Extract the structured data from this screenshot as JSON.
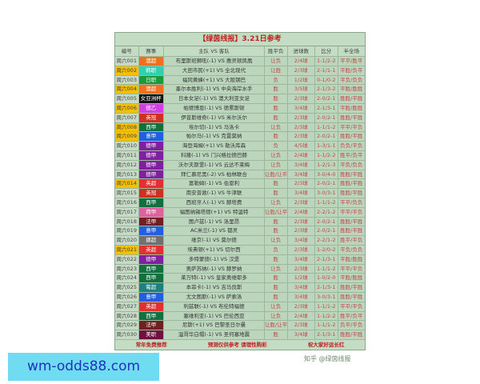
{
  "title": "【绿茵线报】3.21日参考",
  "headers": [
    "编号",
    "赛事",
    "主队 VS 客队",
    "胜平负",
    "进球数",
    "比分",
    "半全场"
  ],
  "rows": [
    [
      "周六001",
      "澳超",
      "#f07020",
      "布里斯班狮吼(-1) VS 惠灵顿凤凰",
      "让负",
      "2/4球",
      "1-1/2-2",
      "平平/胜平",
      false
    ],
    [
      "周六002",
      "韩职",
      "#30d0b0",
      "大田市民(+1) VS 全北现代",
      "让胜",
      "2/3球",
      "2-1/1-1",
      "平胜/负平",
      true
    ],
    [
      "周六003",
      "日职",
      "#1a9a3a",
      "福冈黄蜂(+1) VS 大阪钢巴",
      "负",
      "1/2球",
      "0-1/0-2",
      "平负/负负",
      false
    ],
    [
      "周六004",
      "澳超",
      "#f07020",
      "墨尔本胜利(-1) VS 中央海岸水手",
      "胜",
      "3/5球",
      "2-1/3-2",
      "平胜/胜胜",
      true
    ],
    [
      "周六005",
      "女亚洲杯",
      "#101010",
      "日本女足(-1) VS 澳大利亚女足",
      "胜",
      "2/3球",
      "2-0/2-1",
      "胜胜/平胜",
      false
    ],
    [
      "周六006",
      "德乙",
      "#d040e0",
      "帕德博恩(-1) VS 德累斯顿",
      "胜",
      "3/4球",
      "2-1/3-1",
      "平胜/胜胜",
      true
    ],
    [
      "周六007",
      "英冠",
      "#d03020",
      "伊普斯维奇(-1) VS 米尔沃尔",
      "胜",
      "2/3球",
      "2-0/2-1",
      "胜胜/平胜",
      false
    ],
    [
      "周六008",
      "西甲",
      "#107040",
      "埃尔切(-1) VS 马洛卡",
      "让负",
      "2/3球",
      "1-1/1-2",
      "平平/平负",
      true
    ],
    [
      "周六009",
      "意甲",
      "#2060e0",
      "帕尔马(-1) VS 克雷莫纳",
      "胜",
      "2/3球",
      "2-0/2-1",
      "胜胜/平胜",
      true
    ],
    [
      "周六010",
      "德甲",
      "#8020a0",
      "海登海姆(+1) VS 勒沃库森",
      "负",
      "4/5球",
      "1-3/1-1",
      "负负/平负",
      false
    ],
    [
      "周六011",
      "德甲",
      "#8020a0",
      "科隆(-1) VS 门兴格拉德巴赫",
      "让负",
      "2/4球",
      "1-1/2-2",
      "胜平/负平",
      false
    ],
    [
      "周六012",
      "德甲",
      "#8020a0",
      "沃尔夫斯堡(-1) VS 云达不莱梅",
      "让负",
      "3/4球",
      "1-2/1-3",
      "平负/负负",
      false
    ],
    [
      "周六013",
      "德甲",
      "#8020a0",
      "拜仁慕尼黑(-2) VS 柏林联合",
      "让胜/让平",
      "3/4球",
      "3-0/4-0",
      "胜胜/平胜",
      false
    ],
    [
      "周六014",
      "英超",
      "#e03030",
      "富勒姆(-1) VS 伯恩利",
      "胜",
      "2/3球",
      "2-0/2-1",
      "胜胜/平胜",
      true
    ],
    [
      "周六015",
      "英冠",
      "#d03020",
      "南安普敦(-1) VS 牛津联",
      "胜",
      "3/4球",
      "3-0/3-1",
      "胜胜/平胜",
      false
    ],
    [
      "周六016",
      "西甲",
      "#107040",
      "西班牙人(-1) VS 赫塔费",
      "让负",
      "2/3球",
      "1-1/1-2",
      "平平/负负",
      false
    ],
    [
      "周六017",
      "荷甲",
      "#e060a0",
      "福图纳锡塔德(+1) VS 特温特",
      "让胜/让平",
      "2/4球",
      "2-2/1-2",
      "平平/平负",
      false
    ],
    [
      "周六018",
      "法甲",
      "#702020",
      "图卢兹(-1) VS 洛里昂",
      "胜",
      "2/3球",
      "2-0/2-1",
      "胜胜/平胜",
      false
    ],
    [
      "周六019",
      "意甲",
      "#2060e0",
      "AC米兰(-1) VS 都灵",
      "胜",
      "2/3球",
      "2-0/2-1",
      "胜胜/平胜",
      false
    ],
    [
      "周六020",
      "挪超",
      "#707070",
      "维京(-1) VS 莫尔德",
      "让负",
      "3/4球",
      "2-2/1-2",
      "胜平/平负",
      false
    ],
    [
      "周六021",
      "英超",
      "#e03030",
      "埃弗顿(+1) VS 切尔西",
      "负",
      "2/3球",
      "1-2/0-2",
      "平负/负负",
      true
    ],
    [
      "周六022",
      "德甲",
      "#8020a0",
      "多特蒙德(-1) VS 汉堡",
      "胜",
      "3/4球",
      "2-1/3-1",
      "平胜/胜胜",
      false
    ],
    [
      "周六023",
      "西甲",
      "#107040",
      "奥萨苏纳(-1) VS 赫罗纳",
      "让负",
      "2/3球",
      "1-1/1-2",
      "平平/平负",
      false
    ],
    [
      "周六024",
      "西甲",
      "#107040",
      "莱万特(-1) VS 皇家奥维耶多",
      "胜",
      "1/2球",
      "1-0/2-0",
      "平胜/胜胜",
      false
    ],
    [
      "周六025",
      "葡超",
      "#208080",
      "本菲卡(-1) VS 吉马良斯",
      "胜",
      "3/4球",
      "2-1/3-1",
      "胜胜/平胜",
      false
    ],
    [
      "周六026",
      "意甲",
      "#2060e0",
      "尤文图斯(-1) VS 萨索洛",
      "胜",
      "3/4球",
      "3-0/3-1",
      "胜胜/平胜",
      false
    ],
    [
      "周六027",
      "英超",
      "#e03030",
      "利兹联(-1) VS 布伦特福德",
      "让负",
      "2/3球",
      "1-1/1-2",
      "平平/平负",
      false
    ],
    [
      "周六028",
      "西甲",
      "#107040",
      "塞维利亚(-1) VS 巴伦西亚",
      "让负",
      "2/4球",
      "1-1/2-2",
      "胜平/负平",
      false
    ],
    [
      "周六029",
      "法甲",
      "#702020",
      "尼斯(+1) VS 巴黎圣日尔曼",
      "让胜/让平",
      "2/3球",
      "1-1/1-2",
      "负平/平负",
      false
    ],
    [
      "周六030",
      "美职",
      "#701040",
      "温哥华白帽(-1) VS 圣何塞地震",
      "胜",
      "3/4球",
      "2-1/3-1",
      "胜胜/平胜",
      false
    ]
  ],
  "footer": [
    "常年免费推荐",
    "预测仅供参考  请理性购彩",
    "祝大家好运长红"
  ],
  "watermark_text": "知乎 @绿茵线报",
  "banner": "wm-odds88.com"
}
